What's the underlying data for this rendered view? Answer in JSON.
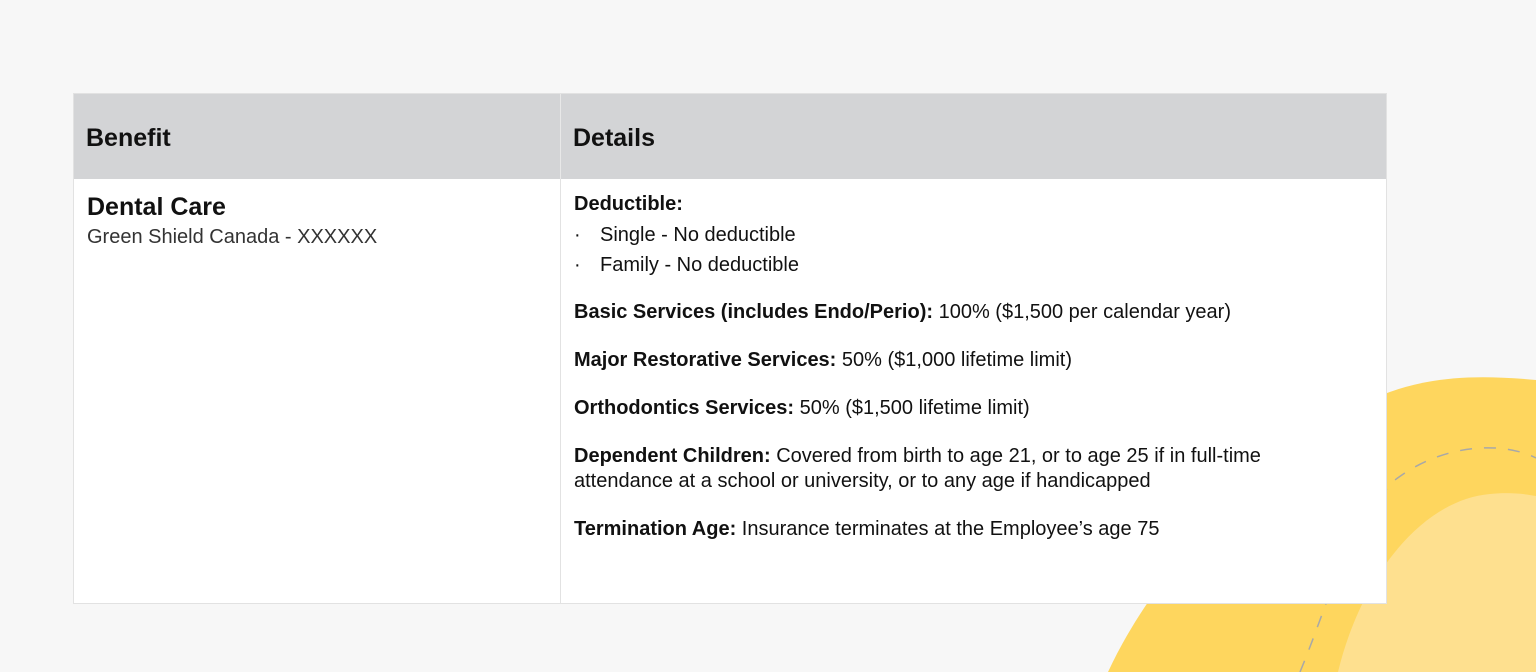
{
  "table": {
    "headers": [
      "Benefit",
      "Details"
    ],
    "benefit": {
      "name": "Dental Care",
      "provider": "Green Shield Canada - XXXXXX"
    },
    "details": {
      "deductible_label": "Deductible:",
      "deductible_items": [
        "Single - No deductible",
        "Family - No deductible"
      ],
      "sections": [
        {
          "label": "Basic Services (includes Endo/Perio):",
          "value": "100% ($1,500 per calendar year)"
        },
        {
          "label": "Major Restorative Services:",
          "value": "50% ($1,000 lifetime limit)"
        },
        {
          "label": "Orthodontics Services:",
          "value": "50% ($1,500 lifetime limit)"
        },
        {
          "label": "Dependent Children:",
          "value": "Covered from birth to age 21, or to age 25 if in full-time attendance at a school or university, or to any age if handicapped"
        },
        {
          "label": "Termination Age:",
          "value": "Insurance terminates at the Employee’s age 75"
        }
      ]
    }
  },
  "colors": {
    "header_bg": "#d3d4d6",
    "blob_dark": "#fed65e",
    "blob_light": "#fee08f"
  }
}
